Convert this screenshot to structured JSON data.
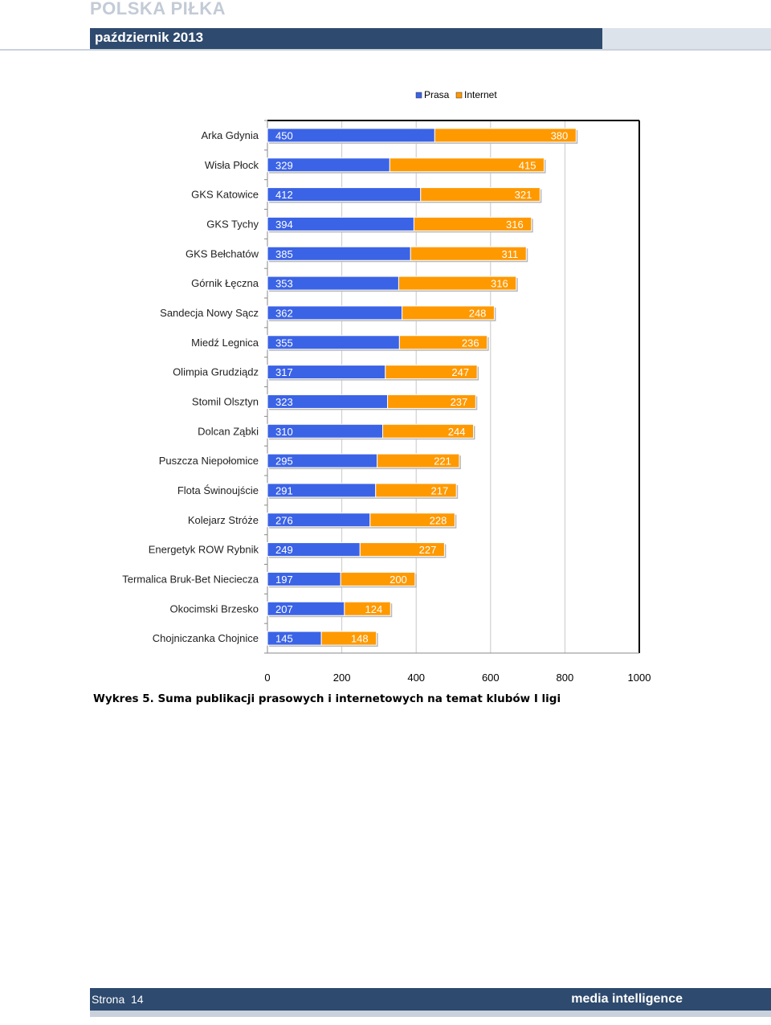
{
  "header": {
    "brand": "POLSKA PIŁKA",
    "date": "październik 2013"
  },
  "chart_data": {
    "type": "bar",
    "orientation": "horizontal",
    "stacked": true,
    "categories": [
      "Arka Gdynia",
      "Wisła Płock",
      "GKS Katowice",
      "GKS Tychy",
      "GKS Bełchatów",
      "Górnik Łęczna",
      "Sandecja Nowy Sącz",
      "Miedź Legnica",
      "Olimpia Grudziądz",
      "Stomil Olsztyn",
      "Dolcan Ząbki",
      "Puszcza Niepołomice",
      "Flota Świnoujście",
      "Kolejarz Stróże",
      "Energetyk ROW Rybnik",
      "Termalica Bruk-Bet Nieciecza",
      "Okocimski Brzesko",
      "Chojniczanka Chojnice"
    ],
    "series": [
      {
        "name": "Prasa",
        "color": "#3b63e6",
        "values": [
          450,
          329,
          412,
          394,
          385,
          353,
          362,
          355,
          317,
          323,
          310,
          295,
          291,
          276,
          249,
          197,
          207,
          145
        ]
      },
      {
        "name": "Internet",
        "color": "#ff9900",
        "values": [
          380,
          415,
          321,
          316,
          311,
          316,
          248,
          236,
          247,
          237,
          244,
          221,
          217,
          228,
          227,
          200,
          124,
          148
        ]
      }
    ],
    "xlim": [
      0,
      1000
    ],
    "xticks": [
      "0",
      "200",
      "400",
      "600",
      "800",
      "1000"
    ],
    "grid": true,
    "legend": "top-right",
    "data_labels": true
  },
  "caption": "Wykres 5. Suma publikacji prasowych i internetowych na temat klubów I ligi",
  "footer": {
    "page_label": "Strona",
    "page_number": "14",
    "brand": "media intelligence"
  }
}
